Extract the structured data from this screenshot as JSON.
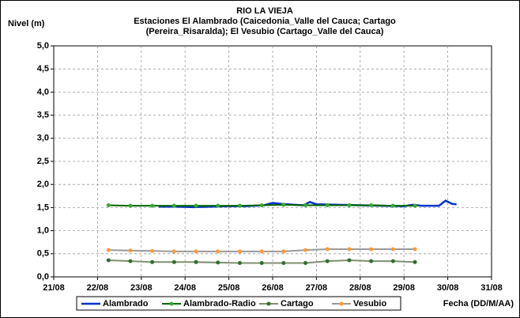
{
  "chart_data": {
    "type": "line",
    "title": "RIO LA VIEJA",
    "subtitle": [
      "Estaciones El Alambrado (Caicedonia_Valle del Cauca; Cartago",
      "(Pereira_Risaralda);  El Vesubio (Cartago_Valle del Cauca)"
    ],
    "y_label": "Nivel (m)",
    "x_label": "Fecha (DD/M/AA)",
    "xlim": [
      21,
      31
    ],
    "xticks": [
      {
        "value": 21,
        "label": "21/08"
      },
      {
        "value": 22,
        "label": "22/08"
      },
      {
        "value": 23,
        "label": "23/08"
      },
      {
        "value": 24,
        "label": "24/08"
      },
      {
        "value": 25,
        "label": "25/08"
      },
      {
        "value": 26,
        "label": "26/08"
      },
      {
        "value": 27,
        "label": "27/08"
      },
      {
        "value": 28,
        "label": "28/08"
      },
      {
        "value": 29,
        "label": "29/08"
      },
      {
        "value": 30,
        "label": "30/08"
      },
      {
        "value": 31,
        "label": "31/08"
      }
    ],
    "ylim": [
      0,
      5
    ],
    "yticks": [
      {
        "value": 0,
        "label": "0,0"
      },
      {
        "value": 0.5,
        "label": "0,5"
      },
      {
        "value": 1,
        "label": "1,0"
      },
      {
        "value": 1.5,
        "label": "1,5"
      },
      {
        "value": 2,
        "label": "2,0"
      },
      {
        "value": 2.5,
        "label": "2,5"
      },
      {
        "value": 3,
        "label": "3,0"
      },
      {
        "value": 3.5,
        "label": "3,5"
      },
      {
        "value": 4,
        "label": "4,0"
      },
      {
        "value": 4.5,
        "label": "4,5"
      },
      {
        "value": 5,
        "label": "5,0"
      }
    ],
    "grid": true,
    "legend": "bottom",
    "series": [
      {
        "name": "Alambrado",
        "color": "#0033cc",
        "x": [
          23.4,
          23.8,
          24.2,
          24.6,
          25.0,
          25.4,
          25.8,
          26.0,
          26.2,
          26.5,
          26.7,
          26.85,
          27.0,
          27.5,
          28.0,
          28.5,
          29.0,
          29.2,
          29.4,
          29.8,
          29.95,
          30.1,
          30.2
        ],
        "values": [
          1.52,
          1.52,
          1.51,
          1.52,
          1.53,
          1.53,
          1.55,
          1.6,
          1.58,
          1.56,
          1.55,
          1.62,
          1.57,
          1.56,
          1.55,
          1.54,
          1.53,
          1.56,
          1.54,
          1.54,
          1.65,
          1.58,
          1.57
        ]
      },
      {
        "name": "Alambrado-Radio",
        "color": "#006600",
        "marker_color": "#33aa33",
        "x": [
          22.25,
          22.75,
          23.25,
          23.75,
          24.25,
          24.75,
          25.25,
          25.75,
          26.25,
          26.75,
          27.25,
          27.75,
          28.25,
          28.75,
          29.25
        ],
        "values": [
          1.55,
          1.54,
          1.54,
          1.54,
          1.54,
          1.54,
          1.54,
          1.55,
          1.56,
          1.55,
          1.55,
          1.55,
          1.55,
          1.54,
          1.54
        ]
      },
      {
        "name": "Cartago",
        "color": "#7f8f6f",
        "marker_color": "#2f6f2f",
        "x": [
          22.25,
          22.75,
          23.25,
          23.75,
          24.25,
          24.75,
          25.25,
          25.75,
          26.25,
          26.75,
          27.25,
          27.75,
          28.25,
          28.75,
          29.25
        ],
        "values": [
          0.36,
          0.34,
          0.32,
          0.32,
          0.32,
          0.31,
          0.3,
          0.3,
          0.3,
          0.3,
          0.34,
          0.36,
          0.34,
          0.34,
          0.32
        ]
      },
      {
        "name": "Vesubio",
        "color": "#999999",
        "marker_color": "#ff9933",
        "x": [
          22.25,
          22.75,
          23.25,
          23.75,
          24.25,
          24.75,
          25.25,
          25.75,
          26.25,
          26.75,
          27.25,
          27.75,
          28.25,
          28.75,
          29.25
        ],
        "values": [
          0.58,
          0.57,
          0.56,
          0.55,
          0.55,
          0.55,
          0.55,
          0.55,
          0.55,
          0.58,
          0.6,
          0.6,
          0.6,
          0.6,
          0.6
        ]
      }
    ]
  }
}
